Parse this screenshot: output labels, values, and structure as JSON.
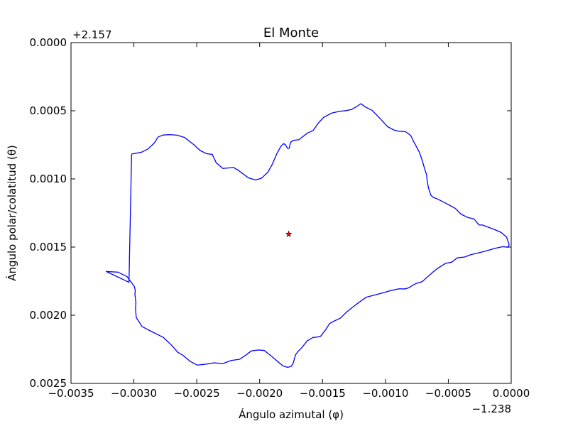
{
  "chart_data": {
    "type": "line",
    "title": "El Monte",
    "xlabel": "Ángulo azimutal (φ)",
    "ylabel": "Ángulo polar/colatitud (θ)",
    "x_offset_label": "−1.238",
    "y_offset_label": "+2.157",
    "xlim": [
      -0.0035,
      0.0
    ],
    "ylim": [
      0.0025,
      0.0
    ],
    "y_inverted": true,
    "x_ticks": [
      -0.0035,
      -0.003,
      -0.0025,
      -0.002,
      -0.0015,
      -0.001,
      -0.0005,
      0.0
    ],
    "x_tick_labels": [
      "−0.0035",
      "−0.0030",
      "−0.0025",
      "−0.0020",
      "−0.0015",
      "−0.0010",
      "−0.0005",
      "0.0000"
    ],
    "y_ticks": [
      0.0,
      0.0005,
      0.001,
      0.0015,
      0.002,
      0.0025
    ],
    "y_tick_labels": [
      "0.0000",
      "0.0005",
      "0.0010",
      "0.0015",
      "0.0020",
      "0.0025"
    ],
    "grid": false,
    "series": [
      {
        "type": "line",
        "color": "#0000ff",
        "x": [
          -0.003018,
          -0.002941,
          -0.002889,
          -0.002838,
          -0.002808,
          -0.002769,
          -0.002715,
          -0.002657,
          -0.002599,
          -0.002524,
          -0.002474,
          -0.002423,
          -0.002377,
          -0.002345,
          -0.002293,
          -0.002205,
          -0.00219,
          -0.002182,
          -0.002174,
          -0.002141,
          -0.002089,
          -0.002032,
          -0.001986,
          -0.001937,
          -0.001899,
          -0.001863,
          -0.001832,
          -0.00181,
          -0.001794,
          -0.001779,
          -0.001765,
          -0.001755,
          -0.001732,
          -0.001689,
          -0.001619,
          -0.001575,
          -0.001534,
          -0.001492,
          -0.001427,
          -0.001363,
          -0.001313,
          -0.00127,
          -0.001227,
          -0.001195,
          -0.001162,
          -0.001106,
          -0.001033,
          -0.000983,
          -0.000931,
          -0.000889,
          -0.000842,
          -0.000799,
          -0.000775,
          -0.000729,
          -0.000705,
          -0.000689,
          -0.000673,
          -0.000668,
          -0.000658,
          -0.000639,
          -0.000618,
          -0.000594,
          -0.000556,
          -0.000506,
          -0.000445,
          -0.000398,
          -0.000345,
          -0.000297,
          -0.000255,
          -0.000229,
          -0.000191,
          -0.000134,
          -8.1e-05,
          -3.7e-05,
          -1.6e-05,
          -2.4e-05,
          -6.6e-05,
          -0.000128,
          -0.000203,
          -0.000262,
          -0.000322,
          -0.000371,
          -0.000429,
          -0.000473,
          -0.000521,
          -0.000581,
          -0.000622,
          -0.000666,
          -0.000707,
          -0.000753,
          -0.000782,
          -0.000804,
          -0.000827,
          -0.000851,
          -0.000891,
          -0.000951,
          -0.001019,
          -0.001088,
          -0.001153,
          -0.001208,
          -0.001262,
          -0.001307,
          -0.001358,
          -0.001404,
          -0.001444,
          -0.001475,
          -0.001515,
          -0.001549,
          -0.001576,
          -0.001621,
          -0.001663,
          -0.001693,
          -0.001714,
          -0.001725,
          -0.001732,
          -0.001749,
          -0.001778,
          -0.001816,
          -0.001862,
          -0.001912,
          -0.001964,
          -0.002015,
          -0.002067,
          -0.002109,
          -0.002159,
          -0.002227,
          -0.002293,
          -0.002361,
          -0.002429,
          -0.002495,
          -0.002553,
          -0.00261,
          -0.002652,
          -0.002701,
          -0.002767,
          -0.002844,
          -0.002935,
          -0.002981,
          -0.002987,
          -0.002984,
          -0.002992,
          -0.002989,
          -0.002997,
          -0.003055,
          -0.003127,
          -0.00322,
          -0.003039,
          -0.003018
        ],
        "y": [
          0.000817,
          0.000805,
          0.000781,
          0.000737,
          0.000693,
          0.000678,
          0.000675,
          0.000679,
          0.000695,
          0.000748,
          0.000791,
          0.000815,
          0.00082,
          0.000882,
          0.000923,
          0.000916,
          0.000927,
          0.000929,
          0.000934,
          0.000957,
          0.000992,
          0.001008,
          0.000995,
          0.000953,
          0.000892,
          0.000814,
          0.000762,
          0.000741,
          0.00075,
          0.000776,
          0.000775,
          0.000732,
          0.000717,
          0.000713,
          0.000663,
          0.000645,
          0.000591,
          0.000549,
          0.000517,
          0.000504,
          0.000499,
          0.000491,
          0.000468,
          0.000448,
          0.000471,
          0.000497,
          0.000566,
          0.000617,
          0.000642,
          0.000651,
          0.000653,
          0.000681,
          0.000726,
          0.000806,
          0.000871,
          0.000924,
          0.000969,
          0.001012,
          0.001065,
          0.001119,
          0.001137,
          0.001144,
          0.001161,
          0.001185,
          0.001216,
          0.001259,
          0.001283,
          0.001293,
          0.001338,
          0.001338,
          0.001351,
          0.001371,
          0.001392,
          0.001427,
          0.001483,
          0.001501,
          0.001497,
          0.001509,
          0.001529,
          0.001543,
          0.001556,
          0.001573,
          0.001579,
          0.001611,
          0.001619,
          0.001654,
          0.001683,
          0.001719,
          0.001753,
          0.001766,
          0.001779,
          0.001793,
          0.001803,
          0.001807,
          0.001806,
          0.001818,
          0.001835,
          0.001852,
          0.001868,
          0.001904,
          0.001942,
          0.001975,
          0.002021,
          0.002041,
          0.002061,
          0.002106,
          0.002154,
          0.002161,
          0.002163,
          0.002187,
          0.002236,
          0.002264,
          0.002289,
          0.002323,
          0.002349,
          0.002375,
          0.002382,
          0.002371,
          0.002335,
          0.002296,
          0.002258,
          0.002255,
          0.002262,
          0.002292,
          0.002323,
          0.002332,
          0.002355,
          0.002349,
          0.002359,
          0.002366,
          0.002338,
          0.002294,
          0.002271,
          0.002219,
          0.002162,
          0.002127,
          0.002083,
          0.002017,
          0.001955,
          0.001905,
          0.001848,
          0.001816,
          0.001788,
          0.001716,
          0.001684,
          0.001679,
          0.001758,
          0.000817
        ]
      },
      {
        "type": "scatter",
        "marker": "star",
        "color": "#ff0000",
        "x": [
          -0.001769
        ],
        "y": [
          0.001405
        ]
      }
    ]
  }
}
